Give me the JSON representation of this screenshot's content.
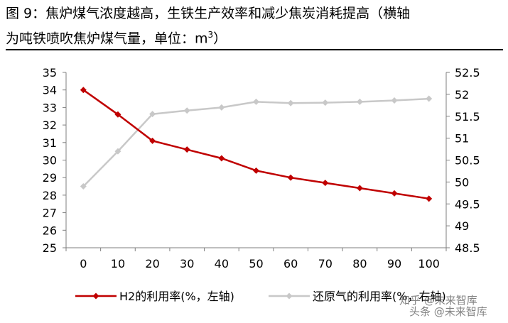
{
  "figure": {
    "title_line1": "图 9：焦炉煤气浓度越高，生铁生产效率和减少焦炭消耗提高（横轴",
    "title_line2_pre": "为吨铁喷吹焦炉煤气量，单位：m",
    "title_sup": "3",
    "title_close": "）"
  },
  "watermark": {
    "line1": "知乎 @未来智库",
    "line2": "头条 @未来智库"
  },
  "colors": {
    "h2": "#c00000",
    "reduction": "#c8c8c8"
  },
  "chart_data": {
    "type": "line",
    "x": [
      0,
      10,
      20,
      30,
      40,
      50,
      60,
      70,
      80,
      90,
      100
    ],
    "x_ticks": [
      "0",
      "10",
      "20",
      "30",
      "40",
      "50",
      "60",
      "70",
      "80",
      "90",
      "100"
    ],
    "y_left_ticks": [
      "25",
      "26",
      "27",
      "28",
      "29",
      "30",
      "31",
      "32",
      "33",
      "34",
      "35"
    ],
    "y_right_ticks": [
      "48.5",
      "49",
      "49.5",
      "50",
      "50.5",
      "51",
      "51.5",
      "52",
      "52.5"
    ],
    "ylim_left": [
      25,
      35
    ],
    "ylim_right": [
      48.5,
      52.5
    ],
    "grid": false,
    "legend_position": "bottom",
    "series": [
      {
        "name": "H2的利用率(%，左轴)",
        "axis": "left",
        "values": [
          34.0,
          32.6,
          31.1,
          30.6,
          30.1,
          29.4,
          29.0,
          28.7,
          28.4,
          28.1,
          27.8
        ]
      },
      {
        "name": "还原气的利用率(%，右轴)",
        "axis": "right",
        "values": [
          49.9,
          50.7,
          51.55,
          51.63,
          51.7,
          51.83,
          51.8,
          51.81,
          51.83,
          51.86,
          51.9
        ]
      }
    ]
  }
}
